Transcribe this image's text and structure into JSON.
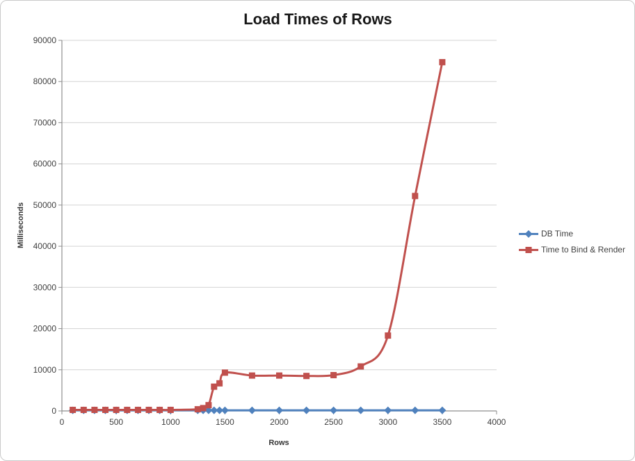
{
  "chart": {
    "title": "Load Times of Rows",
    "x_axis_title": "Rows",
    "y_axis_title": "Milliseconds"
  },
  "legend": {
    "position": "right",
    "items": [
      {
        "label": "DB Time",
        "color": "#4F81BD",
        "marker": "diamond"
      },
      {
        "label": "Time to Bind & Render",
        "color": "#C0504D",
        "marker": "square"
      }
    ]
  },
  "chart_data": {
    "type": "line",
    "title": "Load Times of Rows",
    "xlabel": "Rows",
    "ylabel": "Milliseconds",
    "xlim": [
      0,
      4000
    ],
    "ylim": [
      0,
      90000
    ],
    "x_ticks": [
      0,
      500,
      1000,
      1500,
      2000,
      2500,
      3000,
      3500,
      4000
    ],
    "y_ticks": [
      0,
      10000,
      20000,
      30000,
      40000,
      50000,
      60000,
      70000,
      80000,
      90000
    ],
    "grid": "horizontal-only",
    "legend_position": "right",
    "smooth_lines": true,
    "x": [
      100,
      200,
      300,
      400,
      500,
      600,
      700,
      800,
      900,
      1000,
      1250,
      1300,
      1350,
      1400,
      1450,
      1500,
      1750,
      2000,
      2250,
      2500,
      2750,
      3000,
      3250,
      3500
    ],
    "series": [
      {
        "name": "DB Time",
        "color": "#4F81BD",
        "marker": "diamond",
        "values": [
          150,
          150,
          150,
          150,
          150,
          150,
          150,
          150,
          150,
          150,
          150,
          150,
          150,
          150,
          150,
          150,
          150,
          150,
          150,
          150,
          150,
          150,
          150,
          150
        ]
      },
      {
        "name": "Time to Bind & Render",
        "color": "#C0504D",
        "marker": "square",
        "values": [
          250,
          250,
          250,
          250,
          250,
          250,
          250,
          250,
          250,
          250,
          400,
          700,
          1400,
          5900,
          6700,
          9300,
          8600,
          8600,
          8500,
          8700,
          10800,
          18300,
          52200,
          84700
        ]
      }
    ]
  },
  "style": {
    "background": "#FFFFFF",
    "border_color": "#C9C9C9",
    "grid_color": "#D3D3D3",
    "axis_color": "#8E8E8E",
    "tick_label_color": "#3F3F3F",
    "title_color": "#171717",
    "axis_title_color": "#333333",
    "legend_text_color": "#3F3F3F"
  }
}
